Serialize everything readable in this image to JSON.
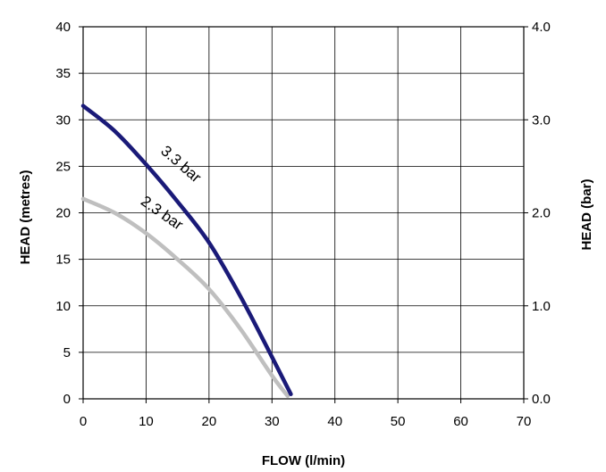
{
  "chart_data": {
    "type": "line",
    "title": "",
    "xlabel": "FLOW (l/min)",
    "ylabel": "HEAD (metres)",
    "y2label": "HEAD (bar)",
    "xlim": [
      0,
      70
    ],
    "ylim": [
      0,
      40
    ],
    "y2lim": [
      0,
      4
    ],
    "grid": true,
    "x_ticks": [
      "0",
      "10",
      "20",
      "30",
      "40",
      "50",
      "60",
      "70"
    ],
    "y_ticks": [
      "0",
      "5",
      "10",
      "15",
      "20",
      "25",
      "30",
      "35",
      "40"
    ],
    "y2_ticks": [
      "0.0",
      "1.0",
      "2.0",
      "3.0",
      "4.0"
    ],
    "series": [
      {
        "name": "3.3 bar",
        "color": "#1a1a78",
        "points": [
          [
            0,
            31.5
          ],
          [
            5,
            28.8
          ],
          [
            10,
            25.2
          ],
          [
            15,
            21.2
          ],
          [
            20,
            16.8
          ],
          [
            25,
            11.0
          ],
          [
            30,
            4.5
          ],
          [
            33,
            0.5
          ]
        ]
      },
      {
        "name": "2.3 bar",
        "color": "#bfbfbf",
        "points": [
          [
            0,
            21.5
          ],
          [
            5,
            20.0
          ],
          [
            10,
            17.8
          ],
          [
            15,
            15.0
          ],
          [
            20,
            11.8
          ],
          [
            25,
            7.5
          ],
          [
            30,
            2.5
          ],
          [
            32.5,
            0.3
          ]
        ]
      }
    ]
  }
}
